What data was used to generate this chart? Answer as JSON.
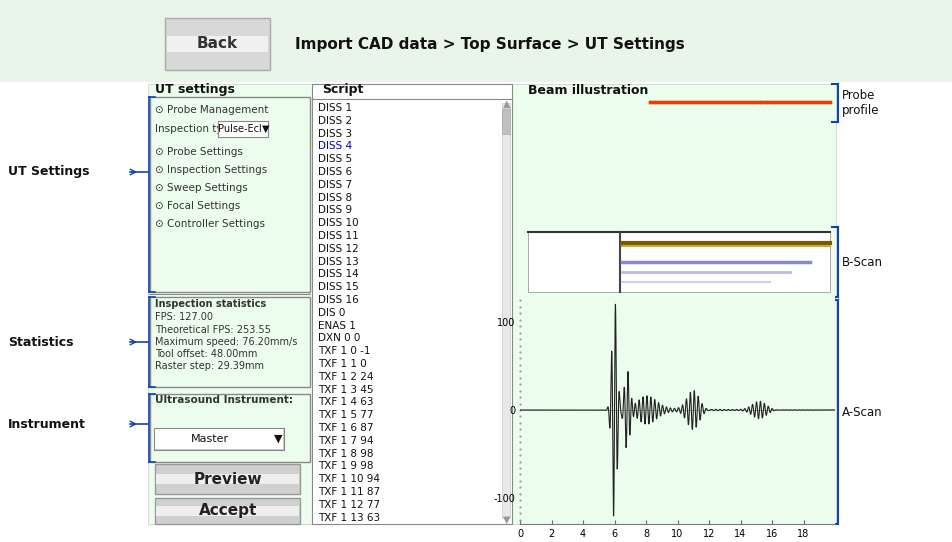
{
  "bg_color": "#edfded",
  "figure_bg": "#ffffff",
  "header_bg": "#e8f5e8",
  "content_bg": "#edfded",
  "panel_border": "#888888",
  "title_text": "Import CAD data > Top Surface > UT Settings",
  "back_btn_text": "Back",
  "ut_settings_label": "UT settings",
  "script_label": "Script",
  "beam_label": "Beam illustration",
  "probe_profile_label": "Probe\nprofile",
  "bscan_label": "B-Scan",
  "ascan_label": "A-Scan",
  "ut_settings_side_label": "UT Settings",
  "statistics_side_label": "Statistics",
  "instrument_side_label": "Instrument",
  "ut_settings_items": [
    "Probe Management",
    "Probe Settings",
    "Inspection Settings",
    "Sweep Settings",
    "Focal Settings",
    "Controller Settings"
  ],
  "statistics_items": [
    "Inspection statistics",
    "FPS: 127.00",
    "Theoretical FPS: 253.55",
    "Maximum speed: 76.20mm/s",
    "Tool offset: 48.00mm",
    "Raster step: 29.39mm"
  ],
  "instrument_label": "Ultrasound Instrument:",
  "instrument_value": "Master",
  "script_items": [
    "DISS 1",
    "DISS 2",
    "DISS 3",
    "DISS 4",
    "DISS 5",
    "DISS 6",
    "DISS 7",
    "DISS 8",
    "DISS 9",
    "DISS 10",
    "DISS 11",
    "DISS 12",
    "DISS 13",
    "DISS 14",
    "DISS 15",
    "DISS 16",
    "DIS 0",
    "ENAS 1",
    "DXN 0 0",
    "TXF 1 0 -1",
    "TXF 1 1 0",
    "TXF 1 2 24",
    "TXF 1 3 45",
    "TXF 1 4 63",
    "TXF 1 5 77",
    "TXF 1 6 87",
    "TXF 1 7 94",
    "TXF 1 8 98",
    "TXF 1 9 98",
    "TXF 1 10 94",
    "TXF 1 11 87",
    "TXF 1 12 77",
    "TXF 1 13 63"
  ],
  "preview_btn": "Preview",
  "accept_btn": "Accept",
  "probe_line_color": "#00bb00",
  "probe_dots_color": "#ff3300",
  "bscan_line1_color_dark": "#7a5c00",
  "bscan_line1_color_light": "#ccaa33",
  "bscan_line2_color": "#8888cc",
  "bscan_line3_color": "#bbbbdd",
  "bscan_line4_color": "#d0d0ee",
  "ascan_line_color": "#222222",
  "bracket_color": "#1144aa",
  "white": "#ffffff"
}
